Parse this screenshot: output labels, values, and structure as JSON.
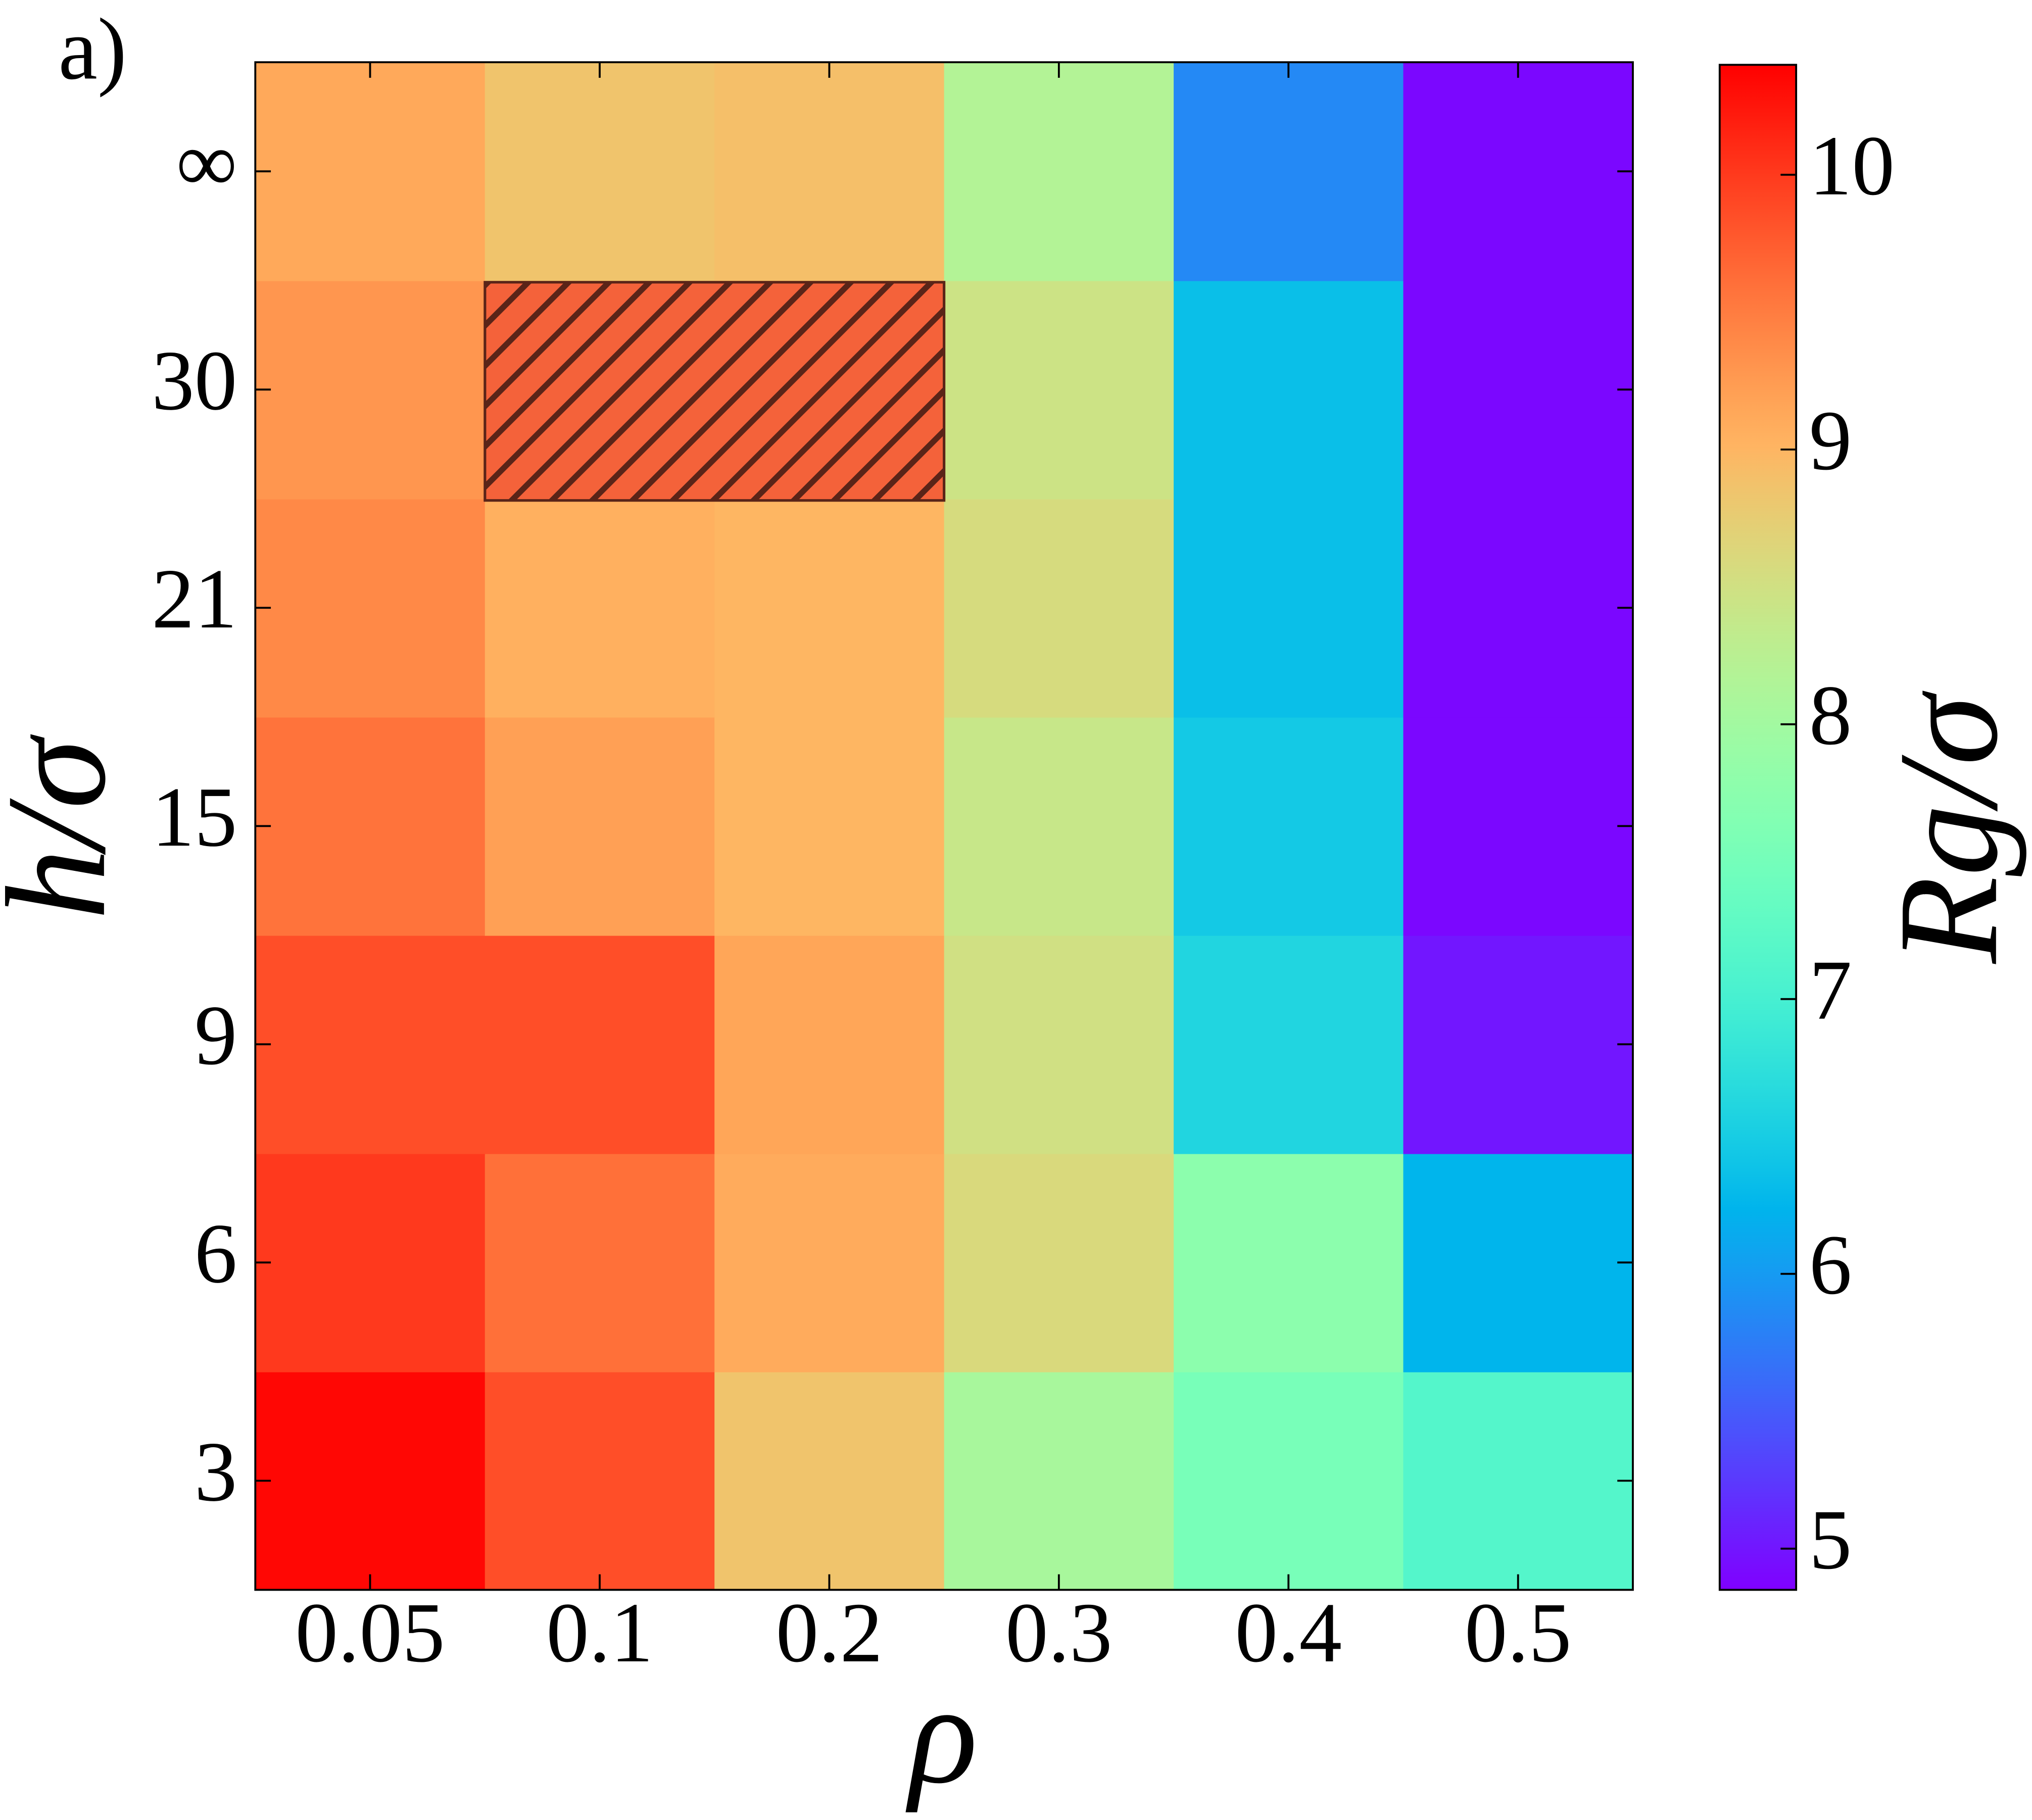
{
  "chart_data": {
    "type": "heatmap",
    "panel_label": "a)",
    "x_label": "ρ",
    "y_label": "h/σ",
    "colorbar_label": "Rg/σ",
    "x": [
      "0.05",
      "0.1",
      "0.2",
      "0.3",
      "0.4",
      "0.5"
    ],
    "y": [
      "3",
      "6",
      "9",
      "15",
      "21",
      "30",
      "∞"
    ],
    "values": [
      [
        10.35,
        9.85,
        8.85,
        8.07,
        7.54,
        7.15
      ],
      [
        10.0,
        9.6,
        9.1,
        8.6,
        7.76,
        6.24
      ],
      [
        9.85,
        9.85,
        9.15,
        8.5,
        6.6,
        5.0
      ],
      [
        9.57,
        9.2,
        9.0,
        8.4,
        6.45,
        4.9
      ],
      [
        9.4,
        9.05,
        9.0,
        8.57,
        6.35,
        4.9
      ],
      [
        9.29,
        null,
        null,
        8.46,
        6.35,
        4.9
      ],
      [
        9.12,
        8.85,
        8.9,
        8.18,
        5.85,
        4.9
      ]
    ],
    "colormap": "rainbow",
    "clim": [
      4.85,
      10.4
    ],
    "cticks": [
      5,
      6,
      7,
      8,
      9,
      10
    ]
  }
}
